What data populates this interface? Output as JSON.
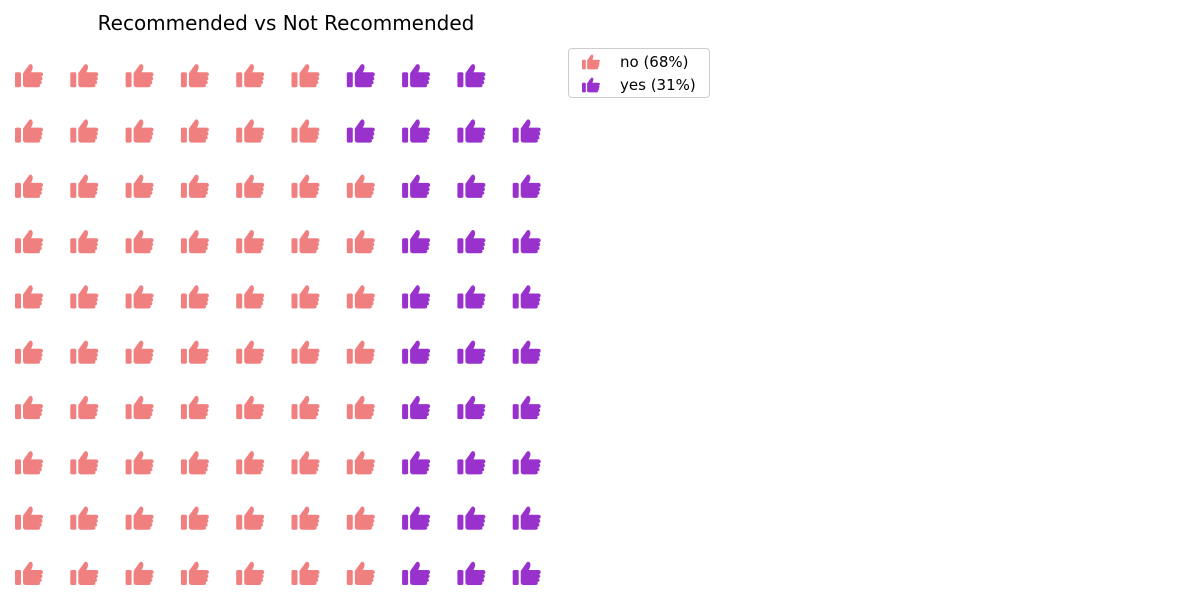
{
  "chart_data": {
    "type": "waffle",
    "title": "Recommended vs Not Recommended",
    "rows": 10,
    "columns": 10,
    "icon": "thumbs-up-icon",
    "fill_order": "column-major, bottom-left start",
    "categories": [
      "no",
      "yes"
    ],
    "values": [
      68,
      31
    ],
    "units": "percent",
    "colors": {
      "no": "#f08080",
      "yes": "#9932cc"
    },
    "legend": {
      "position": "upper-right outside plot",
      "entries": [
        {
          "label": "no (68%)",
          "color": "#f08080"
        },
        {
          "label": "yes (31%)",
          "color": "#9932cc"
        }
      ]
    },
    "grid": false
  }
}
